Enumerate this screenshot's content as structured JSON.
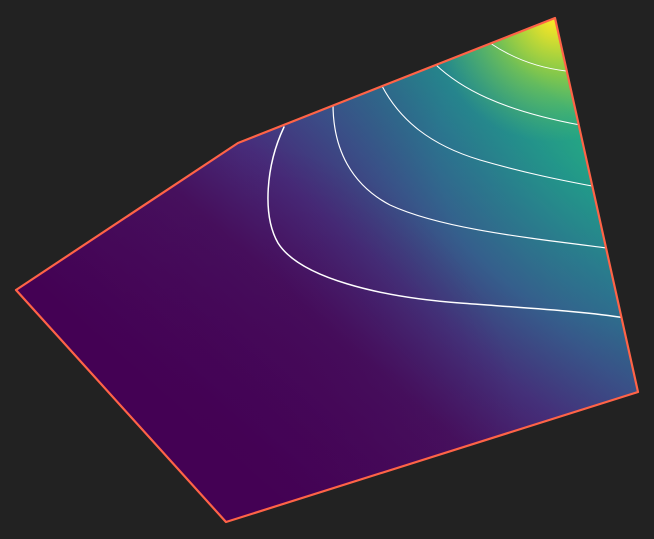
{
  "scene": {
    "background_color": "#222222",
    "outline_color": "#ff6347",
    "contour_color": "#ffffff",
    "colormap": "viridis",
    "contour_levels": [
      0.222,
      0.333,
      0.444,
      0.556,
      0.667,
      0.778,
      0.889
    ],
    "low_color": "#440154",
    "high_color": "#fde725"
  }
}
